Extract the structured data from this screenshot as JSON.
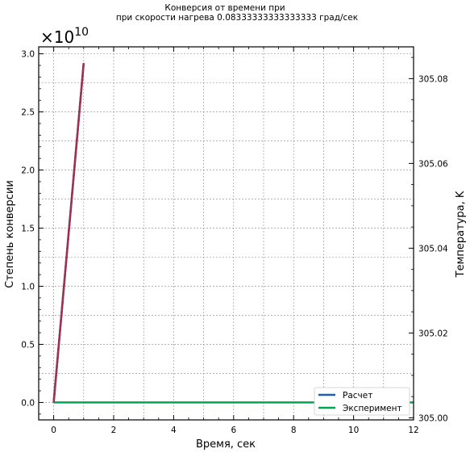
{
  "chart_data": {
    "type": "line",
    "title_line1": "Конверсия от времени при",
    "title_line2": "при скорости нагрева 0.08333333333333333 град/сек",
    "xlabel": "Время, сек",
    "ylabel_left": "Степень конверсии",
    "ylabel_right": "Температура, K",
    "offset_label": "×10^10",
    "offset_base": "×10",
    "offset_exp": "10",
    "xlim": [
      -0.5,
      12
    ],
    "ylim_left": [
      -0.15,
      3.06
    ],
    "ylim_right": [
      304.9995,
      305.0875
    ],
    "x_ticks": [
      0,
      2,
      4,
      6,
      8,
      10,
      12
    ],
    "x_tick_labels": [
      "0",
      "2",
      "4",
      "6",
      "8",
      "10",
      "12"
    ],
    "y_ticks_left": [
      0,
      0.5,
      1.0,
      1.5,
      2.0,
      2.5,
      3.0
    ],
    "y_tick_labels_left": [
      "0.0",
      "0.5",
      "1.0",
      "1.5",
      "2.0",
      "2.5",
      "3.0"
    ],
    "y_ticks_right": [
      305.0,
      305.02,
      305.04,
      305.06,
      305.08
    ],
    "y_tick_labels_right": [
      "305.00",
      "305.02",
      "305.04",
      "305.06",
      "305.08"
    ],
    "grid": true,
    "legend_position": "bottom-right",
    "series": [
      {
        "name": "Расчет",
        "color": "#1f5fa8",
        "axis": "left",
        "x": [
          0,
          1
        ],
        "y": [
          0,
          2.92
        ]
      },
      {
        "name": "Эксперимент",
        "color": "#00a651",
        "axis": "left",
        "x": [
          0,
          12
        ],
        "y": [
          0,
          0
        ]
      },
      {
        "name": "",
        "color": "#a0304e",
        "axis": "left",
        "x": [
          0,
          1
        ],
        "y": [
          0,
          2.92
        ]
      }
    ],
    "legend": [
      {
        "label": "Расчет",
        "color": "#1f5fa8"
      },
      {
        "label": "Эксперимент",
        "color": "#00a651"
      }
    ]
  }
}
